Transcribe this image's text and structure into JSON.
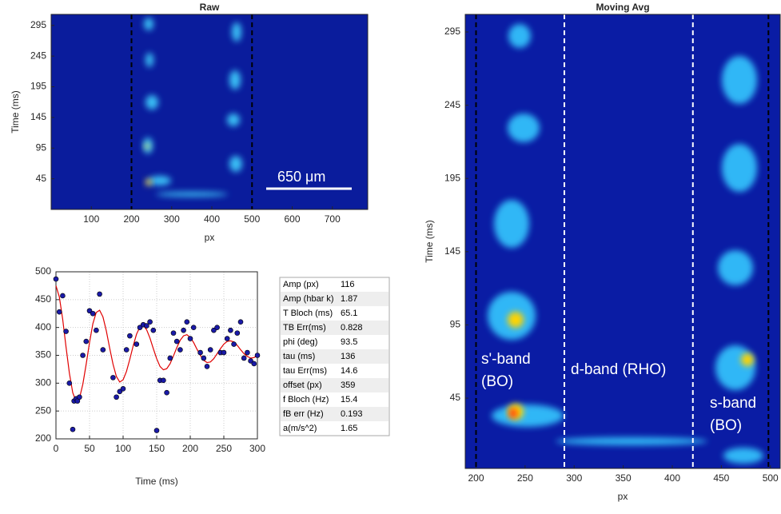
{
  "chart_data": [
    {
      "type": "heatmap",
      "title": "Raw",
      "xlabel": "px",
      "ylabel": "Time (ms)",
      "xlim": [
        0,
        788
      ],
      "ylim": [
        -5,
        313
      ],
      "xticks": [
        100,
        200,
        300,
        400,
        500,
        600,
        700
      ],
      "yticks": [
        45,
        95,
        145,
        195,
        245,
        295
      ],
      "vlines": [
        {
          "x": 200,
          "color": "#000000"
        },
        {
          "x": 500,
          "color": "#000000"
        }
      ],
      "annotations": [
        "650 μm"
      ]
    },
    {
      "type": "heatmap",
      "title": "Moving Avg",
      "xlabel": "px",
      "ylabel": "Time (ms)",
      "xlim": [
        189,
        510
      ],
      "ylim": [
        -3,
        307
      ],
      "xticks": [
        200,
        250,
        300,
        350,
        400,
        450,
        500
      ],
      "yticks": [
        45,
        95,
        145,
        195,
        245,
        295
      ],
      "vlines": [
        {
          "x": 200,
          "color": "#000000"
        },
        {
          "x": 498,
          "color": "#000000"
        },
        {
          "x": 290,
          "color": "#ffffff"
        },
        {
          "x": 421,
          "color": "#ffffff"
        }
      ],
      "annotations": [
        [
          "s'-band",
          "(BO)"
        ],
        [
          "d-band (RHO)"
        ],
        [
          "s-band",
          "(BO)"
        ]
      ]
    },
    {
      "type": "scatter",
      "xlabel": "Time (ms)",
      "xlim": [
        0,
        300
      ],
      "ylim": [
        200,
        500
      ],
      "xticks": [
        0,
        50,
        100,
        150,
        200,
        250,
        300
      ],
      "yticks": [
        200,
        250,
        300,
        350,
        400,
        450,
        500
      ],
      "grid": true,
      "points": {
        "color": "#1a1aa8",
        "x": [
          0,
          5,
          10,
          15,
          20,
          25,
          27,
          30,
          32,
          35,
          40,
          45,
          50,
          55,
          60,
          65,
          70,
          85,
          90,
          95,
          100,
          105,
          110,
          120,
          125,
          130,
          135,
          140,
          145,
          150,
          155,
          160,
          165,
          170,
          175,
          180,
          185,
          190,
          195,
          200,
          205,
          215,
          220,
          225,
          230,
          235,
          240,
          245,
          250,
          255,
          260,
          265,
          270,
          275,
          280,
          285,
          290,
          295,
          300
        ],
        "y": [
          487,
          428,
          457,
          393,
          300,
          217,
          268,
          272,
          268,
          275,
          350,
          375,
          430,
          425,
          395,
          460,
          360,
          310,
          275,
          285,
          290,
          360,
          385,
          370,
          400,
          405,
          403,
          410,
          395,
          215,
          305,
          305,
          283,
          345,
          390,
          375,
          360,
          395,
          410,
          380,
          400,
          355,
          345,
          330,
          360,
          395,
          400,
          355,
          355,
          380,
          395,
          370,
          390,
          410,
          345,
          355,
          340,
          335,
          350
        ]
      },
      "fit": {
        "color": "#e00000",
        "x": [
          0,
          5,
          10,
          15,
          20,
          25,
          30,
          35,
          40,
          45,
          50,
          55,
          60,
          65,
          70,
          75,
          80,
          85,
          90,
          95,
          100,
          105,
          110,
          115,
          120,
          125,
          130,
          135,
          140,
          145,
          150,
          155,
          160,
          165,
          170,
          175,
          180,
          185,
          190,
          195,
          200,
          205,
          210,
          215,
          220,
          225,
          230,
          235,
          240,
          245,
          250,
          255,
          260,
          265,
          270,
          275,
          280,
          285,
          290,
          295,
          300
        ],
        "y": [
          475,
          455,
          415,
          365,
          318,
          283,
          267,
          273,
          298,
          334,
          373,
          407,
          427,
          431,
          419,
          394,
          363,
          334,
          312,
          302,
          306,
          321,
          343,
          367,
          388,
          401,
          404,
          396,
          381,
          362,
          344,
          330,
          324,
          326,
          335,
          349,
          364,
          377,
          385,
          387,
          382,
          373,
          361,
          350,
          341,
          337,
          338,
          344,
          353,
          362,
          370,
          375,
          376,
          374,
          368,
          360,
          353,
          348,
          345,
          346,
          350
        ]
      },
      "table": [
        [
          "Amp (px)",
          116
        ],
        [
          "Amp (hbar k)",
          1.87
        ],
        [
          "T Bloch (ms)",
          65.1
        ],
        [
          "TB Err(ms)",
          0.828
        ],
        [
          "phi (deg)",
          93.5
        ],
        [
          "tau (ms)",
          136
        ],
        [
          "tau Err(ms)",
          14.6
        ],
        [
          "offset (px)",
          359
        ],
        [
          "f Bloch (Hz)",
          15.4
        ],
        [
          "fB err (Hz)",
          0.193
        ],
        [
          "a(m/s^2)",
          1.65
        ]
      ]
    }
  ]
}
